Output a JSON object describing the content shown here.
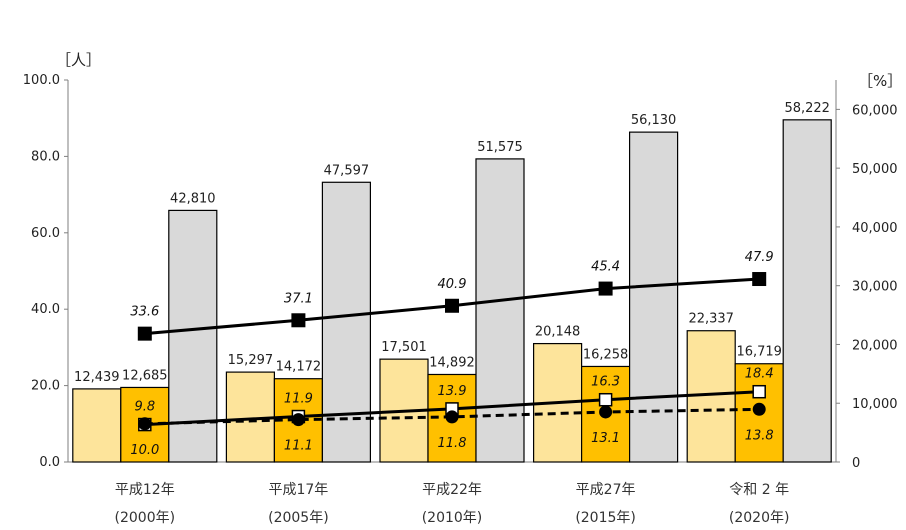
{
  "chart_data": {
    "type": "bar",
    "left_axis": {
      "unit_label": "［人］",
      "ticks": [
        "0.0",
        "20.0",
        "40.0",
        "60.0",
        "80.0",
        "100.0"
      ],
      "range": [
        0,
        100
      ]
    },
    "right_axis": {
      "unit_label": "［%］",
      "ticks": [
        "0",
        "10,000",
        "20,000",
        "30,000",
        "40,000",
        "50,000",
        "60,000"
      ],
      "range": [
        0,
        65000
      ]
    },
    "categories": [
      {
        "line1": "平成12年",
        "line2": "(2000年)"
      },
      {
        "line1": "平成17年",
        "line2": "(2005年)"
      },
      {
        "line1": "平成22年",
        "line2": "(2010年)"
      },
      {
        "line1": "平成27年",
        "line2": "(2015年)"
      },
      {
        "line1": "令和 2 年",
        "line2": "(2020年)"
      }
    ],
    "bar_series": [
      {
        "values": [
          12439,
          15297,
          17501,
          20148,
          22337
        ],
        "labels": [
          "12,439",
          "15,297",
          "17,501",
          "20,148",
          "22,337"
        ],
        "color": "#fde49b"
      },
      {
        "values": [
          12685,
          14172,
          14892,
          16258,
          16719
        ],
        "labels": [
          "12,685",
          "14,172",
          "14,892",
          "16,258",
          "16,719"
        ],
        "color": "#ffc000"
      },
      {
        "values": [
          42810,
          47597,
          51575,
          56130,
          58222
        ],
        "labels": [
          "42,810",
          "47,597",
          "51,575",
          "56,130",
          "58,222"
        ],
        "color": "#d9d9d9"
      }
    ],
    "line_series": [
      {
        "values": [
          33.6,
          37.1,
          40.9,
          45.4,
          47.9
        ],
        "labels": [
          "33.6",
          "37.1",
          "40.9",
          "45.4",
          "47.9"
        ],
        "marker": "filled-square",
        "dash": "solid"
      },
      {
        "values": [
          9.8,
          11.9,
          13.9,
          16.3,
          18.4
        ],
        "labels": [
          "9.8",
          "11.9",
          "13.9",
          "16.3",
          "18.4"
        ],
        "marker": "open-square",
        "dash": "solid"
      },
      {
        "values": [
          10.0,
          11.1,
          11.8,
          13.1,
          13.8
        ],
        "labels": [
          "10.0",
          "11.1",
          "11.8",
          "13.1",
          "13.8"
        ],
        "marker": "filled-circle",
        "dash": "dashed"
      }
    ]
  }
}
